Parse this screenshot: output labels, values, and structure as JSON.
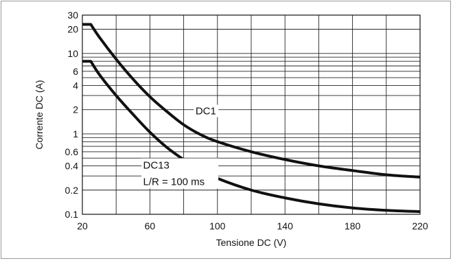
{
  "chart_data": {
    "type": "line",
    "xlabel": "Tensione DC (V)",
    "ylabel": "Corrente DC (A)",
    "xlim": [
      20,
      220
    ],
    "ylim": [
      0.1,
      30
    ],
    "yscale": "log",
    "grid": true,
    "x_ticks": [
      "20",
      "60",
      "100",
      "140",
      "180",
      "220"
    ],
    "y_ticks": [
      "0.1",
      "0.2",
      "0.4",
      "0.6",
      "1",
      "2",
      "4",
      "6",
      "10",
      "20",
      "30"
    ],
    "y_tick_values": [
      0.1,
      0.2,
      0.4,
      0.6,
      1,
      2,
      4,
      6,
      10,
      20,
      30
    ],
    "series": [
      {
        "name": "DC1",
        "color": "#111111",
        "points": [
          [
            20,
            23
          ],
          [
            25,
            23
          ],
          [
            30,
            16
          ],
          [
            40,
            8.5
          ],
          [
            50,
            4.8
          ],
          [
            60,
            2.9
          ],
          [
            70,
            1.9
          ],
          [
            80,
            1.3
          ],
          [
            90,
            0.98
          ],
          [
            100,
            0.8
          ],
          [
            120,
            0.6
          ],
          [
            140,
            0.48
          ],
          [
            160,
            0.4
          ],
          [
            180,
            0.35
          ],
          [
            200,
            0.31
          ],
          [
            220,
            0.29
          ]
        ]
      },
      {
        "name": "DC13",
        "sublabel": "L/R = 100 ms",
        "color": "#111111",
        "points": [
          [
            20,
            8
          ],
          [
            25,
            8
          ],
          [
            30,
            5.5
          ],
          [
            40,
            3.0
          ],
          [
            50,
            1.75
          ],
          [
            60,
            1.05
          ],
          [
            70,
            0.68
          ],
          [
            80,
            0.48
          ],
          [
            90,
            0.36
          ],
          [
            100,
            0.28
          ],
          [
            120,
            0.2
          ],
          [
            140,
            0.16
          ],
          [
            160,
            0.135
          ],
          [
            180,
            0.12
          ],
          [
            200,
            0.112
          ],
          [
            220,
            0.108
          ]
        ]
      }
    ]
  }
}
